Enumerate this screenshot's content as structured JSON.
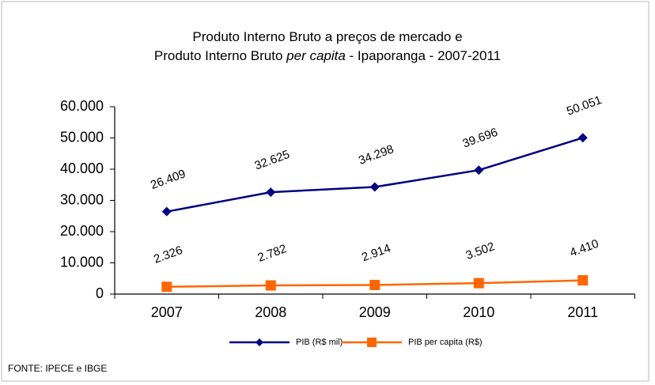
{
  "chart_data": {
    "type": "line",
    "title_lines": [
      [
        "Produto Interno Bruto a preços de mercado e"
      ],
      [
        "Produto Interno Bruto ",
        "per capita",
        " - Ipaporanga - 2007-2011"
      ]
    ],
    "categories": [
      "2007",
      "2008",
      "2009",
      "2010",
      "2011"
    ],
    "series": [
      {
        "name": "PIB (R$ mil)",
        "color": "#000080",
        "marker": "diamond",
        "values": [
          26409,
          32625,
          34298,
          39696,
          50051
        ],
        "value_labels": [
          "26.409",
          "32.625",
          "34.298",
          "39.696",
          "50.051"
        ]
      },
      {
        "name": "PIB per capita (R$)",
        "color": "#ff6600",
        "marker": "square",
        "values": [
          2326,
          2782,
          2914,
          3502,
          4410
        ],
        "value_labels": [
          "2.326",
          "2.782",
          "2.914",
          "3.502",
          "4.410"
        ]
      }
    ],
    "ylim": [
      0,
      60000
    ],
    "yticks": [
      0,
      {
        "value": 10000,
        "label": "10.000"
      },
      {
        "value": 20000,
        "label": "20.000"
      },
      {
        "value": 30000,
        "label": "30.000"
      },
      {
        "value": 40000,
        "label": "40.000"
      },
      {
        "value": 50000,
        "label": "50.000"
      },
      {
        "value": 60000,
        "label": "60.000"
      }
    ],
    "grid": false,
    "legend": "bottom",
    "source": "FONTE: IPECE e IBGE"
  }
}
